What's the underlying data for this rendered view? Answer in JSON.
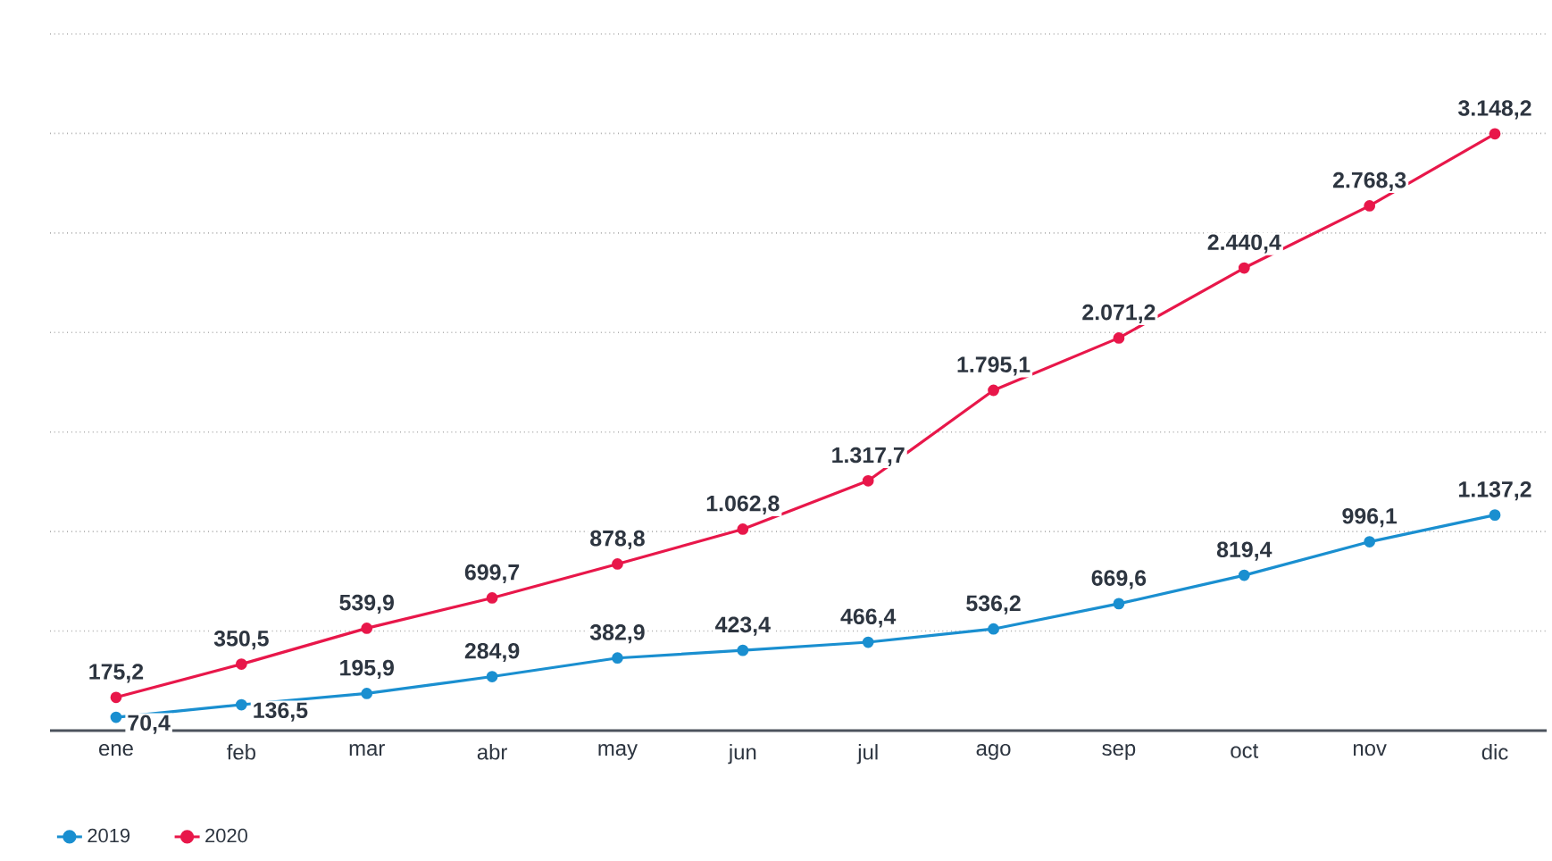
{
  "chart_data": {
    "type": "line",
    "categories": [
      "ene",
      "feb",
      "mar",
      "abr",
      "may",
      "jun",
      "jul",
      "ago",
      "sep",
      "oct",
      "nov",
      "dic"
    ],
    "series": [
      {
        "name": "2019",
        "color": "#1a8fd0",
        "values": [
          70.4,
          136.5,
          195.9,
          284.9,
          382.9,
          423.4,
          466.4,
          536.2,
          669.6,
          819.4,
          996.1,
          1137.2
        ],
        "value_labels": [
          "70,4",
          "136,5",
          "195,9",
          "284,9",
          "382,9",
          "423,4",
          "466,4",
          "536,2",
          "669,6",
          "819,4",
          "996,1",
          "1.137,2"
        ]
      },
      {
        "name": "2020",
        "color": "#e8174a",
        "values": [
          175.2,
          350.5,
          539.9,
          699.7,
          878.8,
          1062.8,
          1317.7,
          1795.1,
          2071.2,
          2440.4,
          2768.3,
          3148.2
        ],
        "value_labels": [
          "175,2",
          "350,5",
          "539,9",
          "699,7",
          "878,8",
          "1.062,8",
          "1.317,7",
          "1.795,1",
          "2.071,2",
          "2.440,4",
          "2.768,3",
          "3.148,2"
        ]
      }
    ],
    "ylim": [
      0,
      3675
    ],
    "yticks": [
      {
        "value": 0,
        "label": null
      },
      {
        "value": 525,
        "label": null
      },
      {
        "value": 1050,
        "label": null
      },
      {
        "value": 1575,
        "label": null
      },
      {
        "value": 2100,
        "label": null
      },
      {
        "value": 2625,
        "label": null
      },
      {
        "value": 3150,
        "label": null
      },
      {
        "value": 3675,
        "label": null
      }
    ],
    "tick_labels": "x",
    "grid": "y",
    "legend": "bottom left",
    "marker": "circle",
    "line_style": "solid"
  }
}
